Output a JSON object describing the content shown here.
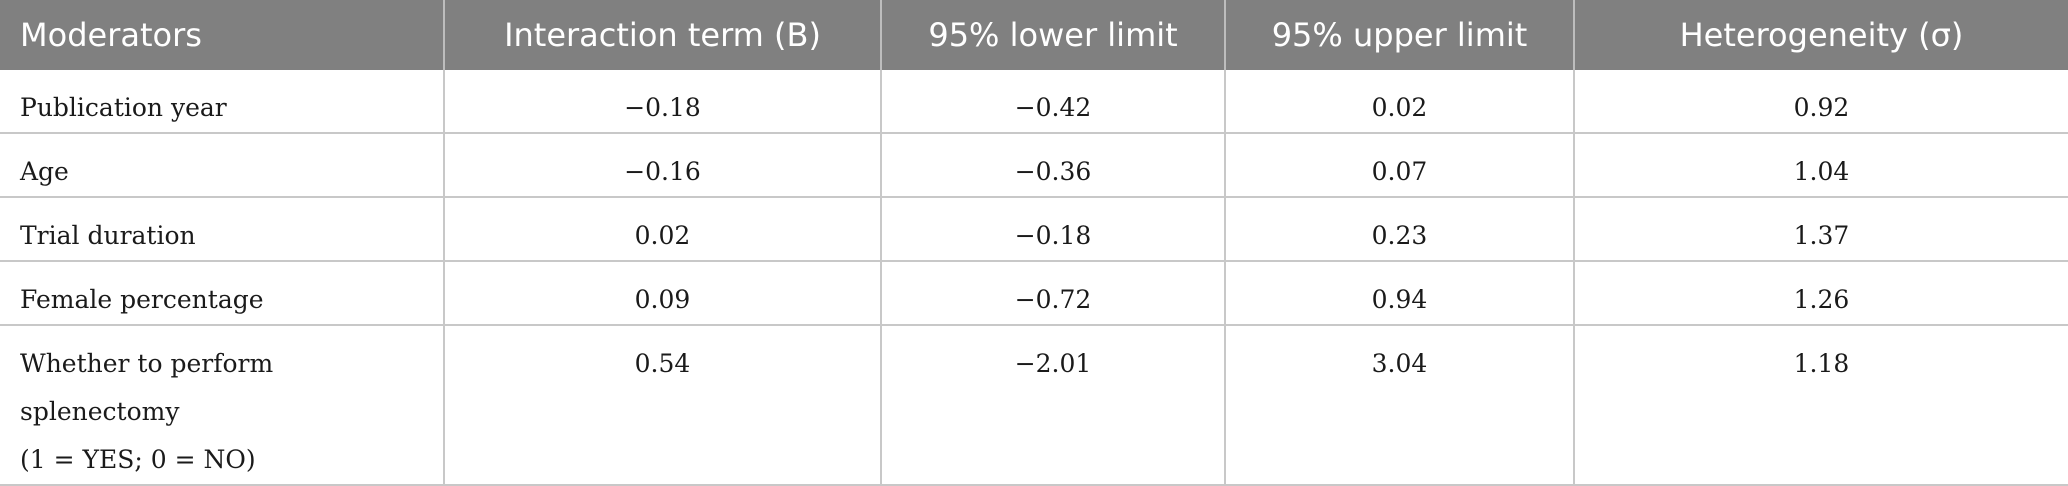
{
  "table": {
    "headers": [
      "Moderators",
      "Interaction term (B)",
      "95% lower limit",
      "95% upper limit",
      "Heterogeneity (σ)"
    ],
    "rows": [
      {
        "moderator": "Publication year",
        "interaction": "−0.18",
        "lower": "−0.42",
        "upper": "0.02",
        "heterogeneity": "0.92"
      },
      {
        "moderator": "Age",
        "interaction": "−0.16",
        "lower": "−0.36",
        "upper": "0.07",
        "heterogeneity": "1.04"
      },
      {
        "moderator": "Trial duration",
        "interaction": "0.02",
        "lower": "−0.18",
        "upper": "0.23",
        "heterogeneity": "1.37"
      },
      {
        "moderator": "Female percentage",
        "interaction": "0.09",
        "lower": "−0.72",
        "upper": "0.94",
        "heterogeneity": "1.26"
      },
      {
        "moderator_line1": "Whether to perform splenectomy",
        "moderator_line2": "(1 = YES; 0 = NO)",
        "interaction": "0.54",
        "lower": "−2.01",
        "upper": "3.04",
        "heterogeneity": "1.18"
      }
    ]
  }
}
